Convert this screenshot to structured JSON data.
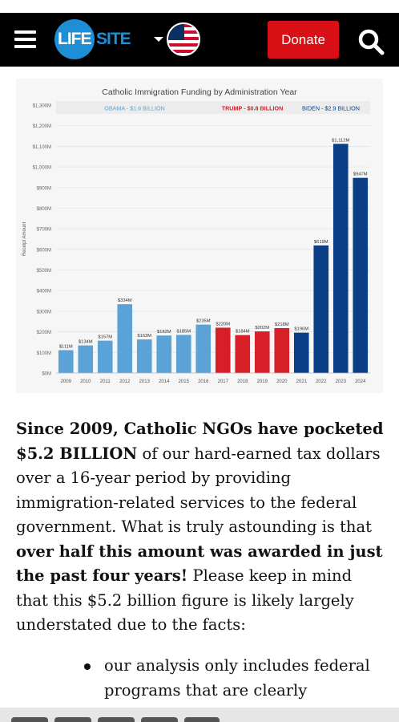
{
  "header": {
    "logo_left": "LIFE",
    "logo_right": "SITE",
    "donate_label": "Donate",
    "colors": {
      "header_bg": "#000000",
      "logo_blue": "#1e8fd6",
      "donate_red": "#d90f16"
    },
    "icons": [
      "hamburger-icon",
      "us-flag-icon",
      "search-icon"
    ]
  },
  "chart_data": {
    "type": "bar",
    "title": "Catholic Immigration Funding by Administration Year",
    "ylabel": "Receipt Amount",
    "xlabel": "",
    "ylim": [
      0,
      1300
    ],
    "yticks": [
      "$0M",
      "$100M",
      "$200M",
      "$300M",
      "$400M",
      "$500M",
      "$600M",
      "$700M",
      "$800M",
      "$900M",
      "$1,000M",
      "$1,100M",
      "$1,200M",
      "$1,300M"
    ],
    "categories": [
      "2009",
      "2010",
      "2011",
      "2012",
      "2013",
      "2014",
      "2015",
      "2016",
      "2017",
      "2018",
      "2019",
      "2020",
      "2021",
      "2022",
      "2023",
      "2024"
    ],
    "values": [
      111,
      134,
      157,
      334,
      163,
      182,
      185,
      235,
      220,
      184,
      202,
      218,
      196,
      619,
      1112,
      947
    ],
    "value_labels": [
      "$111M",
      "$134M",
      "$157M",
      "$334M",
      "$163M",
      "$182M",
      "$185M",
      "$235M",
      "$220M",
      "$184M",
      "$202M",
      "$218M",
      "$196M",
      "$619M",
      "$1,112M",
      "$947M"
    ],
    "groups": [
      {
        "name": "OBAMA - $1.6 BILLION",
        "color": "#5ba3d6",
        "from": 0,
        "to": 7
      },
      {
        "name": "TRUMP - $0.8 BILLION",
        "color": "#d61f26",
        "from": 8,
        "to": 11
      },
      {
        "name": "BIDEN - $2.9 BILLION",
        "color": "#0a3f87",
        "from": 12,
        "to": 15
      }
    ],
    "grid": true,
    "legend": "top"
  },
  "article": {
    "p1_bold1": "Since 2009, Catholic NGOs have pocketed $5.2 BILLION",
    "p1_text1": " of our hard-earned tax dollars over a 16-year period by providing immigration-related services to the federal government. What is truly astounding is that ",
    "p1_bold2": "over half this amount was awarded in just the past four years!",
    "p1_text2": " Please keep in mind that this $5.2 billion figure is likely largely understated due to the facts:",
    "bullet1": "our analysis only includes federal programs that are clearly"
  }
}
